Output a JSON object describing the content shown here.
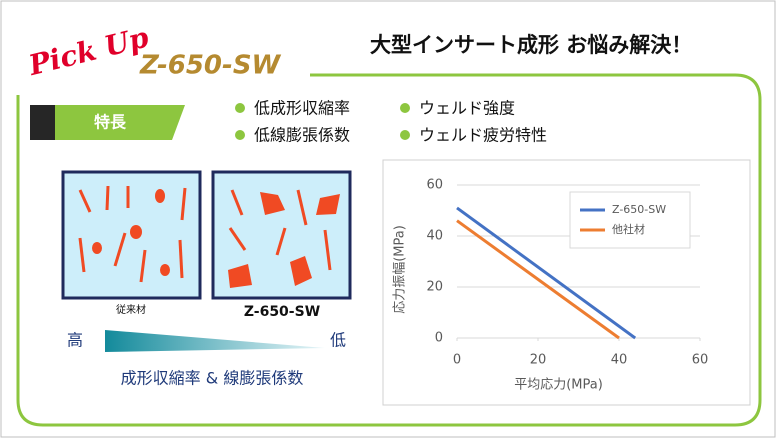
{
  "header": {
    "pickup": "Pick Up",
    "product": "Z-650-SW",
    "title": "大型インサート成形 お悩み解決！"
  },
  "features": {
    "label": "特長",
    "items": [
      "低成形収縮率",
      "ウェルド強度",
      "低線膨張係数",
      "ウェルド疲労特性"
    ]
  },
  "illustration": {
    "left_label": "従来材",
    "right_label": "Z-650-SW",
    "high": "高",
    "low": "低",
    "caption": "成形収縮率 & 線膨張係数"
  },
  "chart_data": {
    "type": "line",
    "xlabel": "平均応力(MPa)",
    "ylabel": "応力振幅(MPa)",
    "series": [
      {
        "name": "Z-650-SW",
        "color": "#4472c4",
        "x": [
          0,
          44
        ],
        "values": [
          51,
          0
        ]
      },
      {
        "name": "他社材",
        "color": "#ed7d31",
        "x": [
          0,
          40
        ],
        "values": [
          46,
          0
        ]
      }
    ],
    "xlim": [
      0,
      60
    ],
    "xticks": [
      0,
      20,
      40,
      60
    ],
    "ylim": [
      0,
      60
    ],
    "yticks": [
      0,
      20,
      40,
      60
    ],
    "grid": true,
    "legend": "upper right"
  }
}
